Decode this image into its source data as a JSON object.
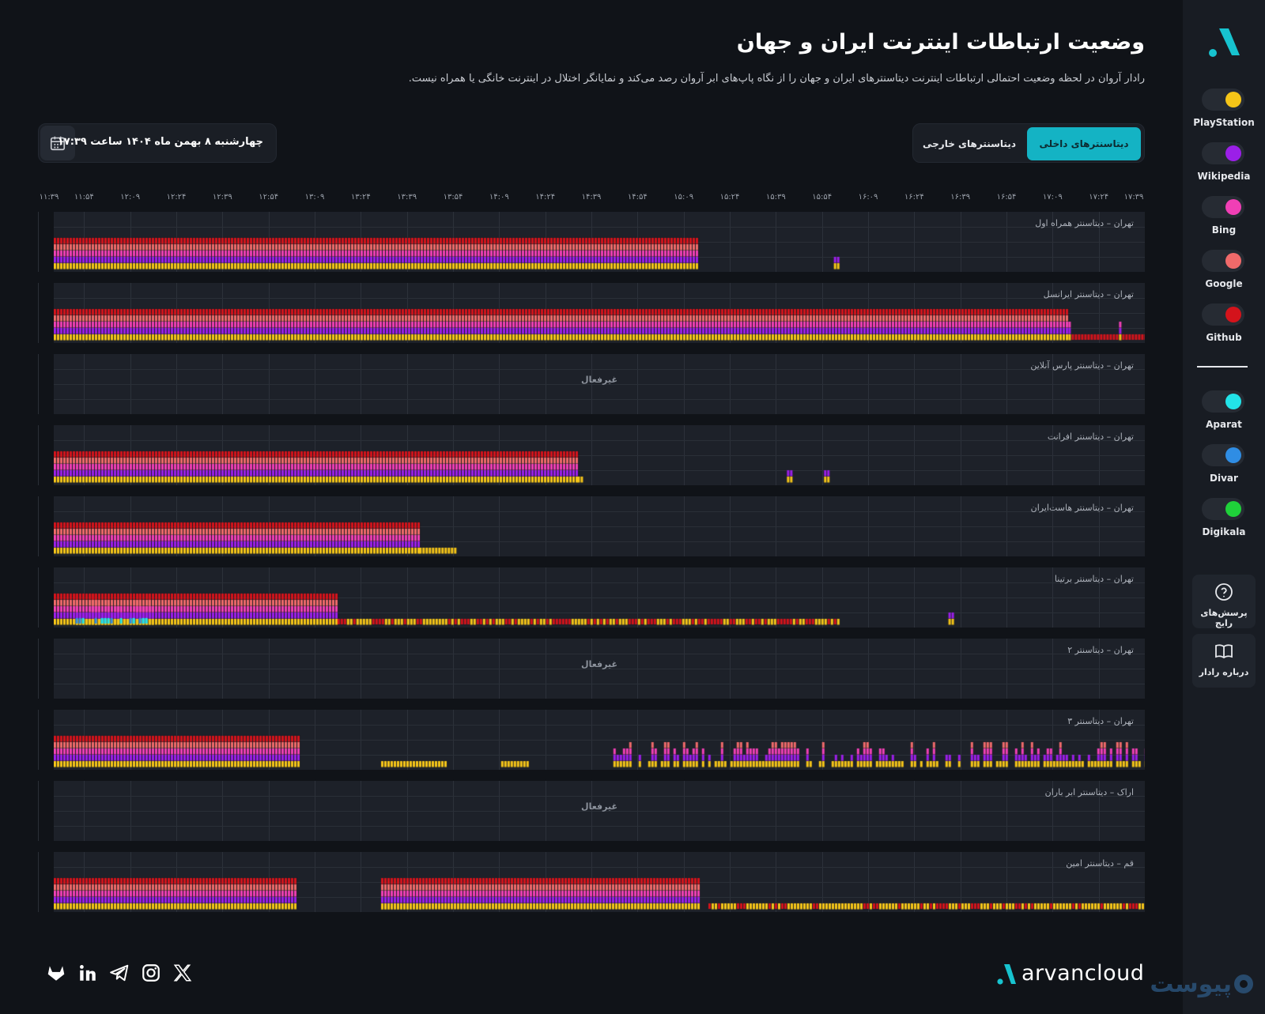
{
  "header": {
    "title": "وضعیت ارتباطات اینترنت ایران و جهان",
    "subtitle": "رادار آروان در لحظه وضعیت احتمالی ارتباطات اینترنت دیتاسنترهای ایران و جهان را از نگاه پاپ‌های ابر آروان رصد می‌کند و نمایانگر اختلال در اینترنت خانگی یا همراه نیست."
  },
  "date_label": "چهارشنبه ۸ بهمن ماه ۱۴۰۴ ساعت ۱۷:۳۹",
  "tabs": {
    "internal": "دیتاسنترهای داخلی",
    "external": "دیتاسنترهای خارجی"
  },
  "services": [
    {
      "name": "PlayStation",
      "color": "#f5c518",
      "icon": "toggle-on"
    },
    {
      "name": "Wikipedia",
      "color": "#9b1fe8",
      "icon": "toggle-on"
    },
    {
      "name": "Bing",
      "color": "#f03fb5",
      "icon": "toggle-on"
    },
    {
      "name": "Google",
      "color": "#f06a6a",
      "icon": "toggle-on"
    },
    {
      "name": "Github",
      "color": "#d4131b",
      "icon": "toggle-on"
    },
    {
      "name": "Aparat",
      "color": "#22e3e8",
      "icon": "toggle-on"
    },
    {
      "name": "Divar",
      "color": "#2f8de4",
      "icon": "toggle-on"
    },
    {
      "name": "Digikala",
      "color": "#1fd13a",
      "icon": "toggle-on"
    }
  ],
  "side_buttons": {
    "faq": "پرسش‌های رایج",
    "about": "درباره رادار"
  },
  "chart_data": {
    "type": "heatmap",
    "x_ticks": [
      "۱۱:۳۹",
      "۱۱:۵۴",
      "۱۲:۰۹",
      "۱۲:۲۴",
      "۱۲:۳۹",
      "۱۲:۵۴",
      "۱۳:۰۹",
      "۱۳:۲۴",
      "۱۳:۳۹",
      "۱۳:۵۴",
      "۱۴:۰۹",
      "۱۴:۲۴",
      "۱۴:۳۹",
      "۱۴:۵۴",
      "۱۵:۰۹",
      "۱۵:۲۴",
      "۱۵:۳۹",
      "۱۵:۵۴",
      "۱۶:۰۹",
      "۱۶:۲۴",
      "۱۶:۳۹",
      "۱۶:۵۴",
      "۱۷:۰۹",
      "۱۷:۲۴",
      "۱۷:۳۹"
    ],
    "inactive_label": "غیرفعال",
    "rows": [
      {
        "name": "تهران – دیتاسنتر همراه اول",
        "status": "active",
        "full_until": 0.59,
        "yellow_until": 0.59,
        "pattern": "none",
        "sparse": [
          [
            0.715,
            0.72
          ]
        ]
      },
      {
        "name": "تهران – دیتاسنتر ایرانسل",
        "status": "active",
        "full_until": 0.93,
        "yellow_until": 1.0,
        "pattern": "tail",
        "sparse": []
      },
      {
        "name": "تهران – دیتاسنتر پارس آنلاین",
        "status": "inactive"
      },
      {
        "name": "تهران – دیتاسنتر افرانت",
        "status": "active",
        "full_until": 0.48,
        "yellow_until": 0.485,
        "pattern": "none",
        "sparse": [
          [
            0.672,
            0.676
          ],
          [
            0.706,
            0.71
          ]
        ]
      },
      {
        "name": "تهران – دیتاسنتر هاست‌ایران",
        "status": "active",
        "full_until": 0.335,
        "yellow_until": 0.367,
        "pattern": "none",
        "sparse": []
      },
      {
        "name": "تهران – دیتاسنتر برتینا",
        "status": "active",
        "full_until": 0.26,
        "yellow_until": 0.72,
        "pattern": "dashed",
        "sparse": [
          [
            0.82,
            0.823
          ]
        ]
      },
      {
        "name": "تهران – دیتاسنتر ۲",
        "status": "inactive"
      },
      {
        "name": "تهران – دیتاسنتر ۳",
        "status": "active",
        "full_until": 0.225,
        "yellow_until": 0.225,
        "pattern": "noise",
        "sparse": [
          [
            0.3,
            0.36
          ],
          [
            0.41,
            0.435
          ]
        ]
      },
      {
        "name": "اراک – دیتاسنتر ابر باران",
        "status": "inactive"
      },
      {
        "name": "قم – دیتاسنتر امین",
        "status": "active",
        "full_until": 0.222,
        "yellow_until": 0.222,
        "pattern": "segment",
        "sparse": [
          [
            0.3,
            0.59
          ]
        ]
      }
    ]
  },
  "footer": {
    "brand": "arvancloud",
    "watermark": "پیوست",
    "social": [
      "gitlab-icon",
      "linkedin-icon",
      "telegram-icon",
      "instagram-icon",
      "x-icon"
    ]
  }
}
